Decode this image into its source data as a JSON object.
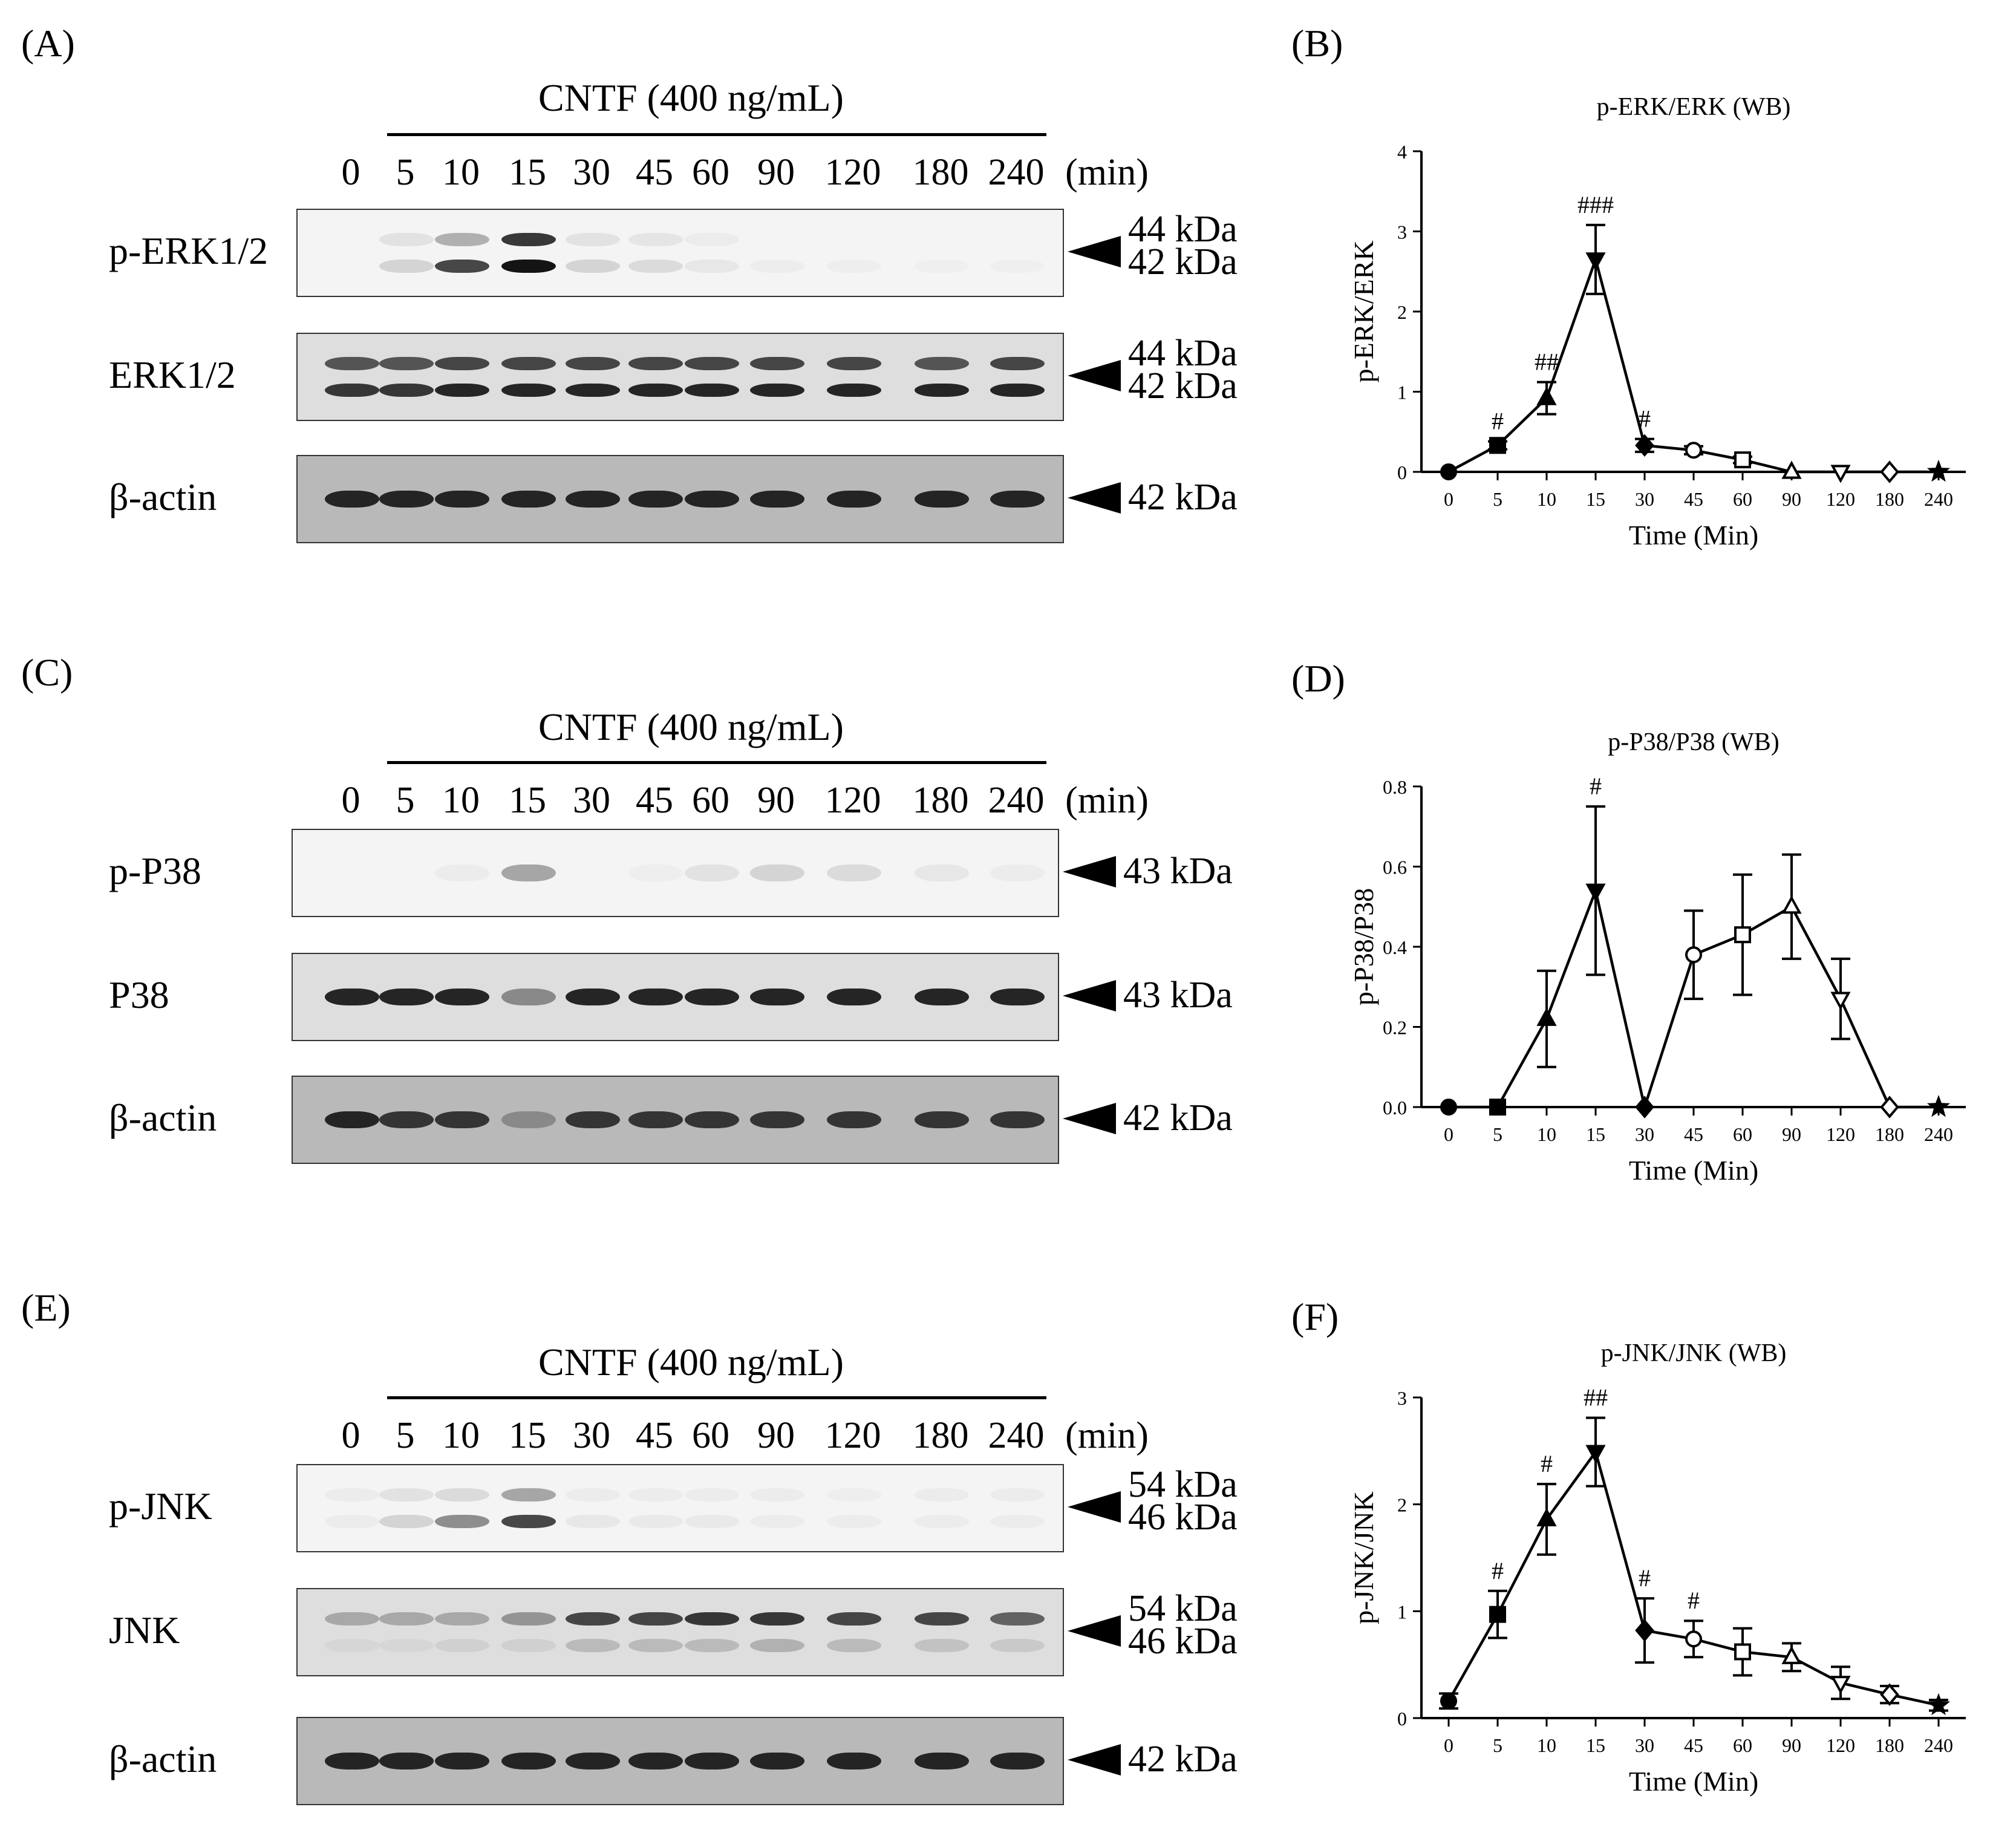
{
  "colors": {
    "ink": "#000000",
    "band": "#1a1a1a",
    "membrane_light": "#f4f4f4",
    "membrane_dark": "#b9b9b9"
  },
  "sections": [
    {
      "panel": "(A)",
      "treatment": "CNTF (400 ng/mL)",
      "lanes": [
        "0",
        "5",
        "10",
        "15",
        "30",
        "45",
        "60",
        "90",
        "120",
        "180",
        "240"
      ],
      "unit": "(min)",
      "blots": [
        {
          "name": "p-ERK1/2",
          "kda": [
            "44 kDa",
            "42 kDa"
          ]
        },
        {
          "name": "ERK1/2",
          "kda": [
            "44 kDa",
            "42 kDa"
          ]
        },
        {
          "name": "β-actin",
          "kda": [
            "42 kDa"
          ]
        }
      ]
    },
    {
      "panel": "(C)",
      "treatment": "CNTF (400 ng/mL)",
      "lanes": [
        "0",
        "5",
        "10",
        "15",
        "30",
        "45",
        "60",
        "90",
        "120",
        "180",
        "240"
      ],
      "unit": "(min)",
      "blots": [
        {
          "name": "p-P38",
          "kda": [
            "43 kDa"
          ]
        },
        {
          "name": "P38",
          "kda": [
            "43 kDa"
          ]
        },
        {
          "name": "β-actin",
          "kda": [
            "42 kDa"
          ]
        }
      ]
    },
    {
      "panel": "(E)",
      "treatment": "CNTF (400 ng/mL)",
      "lanes": [
        "0",
        "5",
        "10",
        "15",
        "30",
        "45",
        "60",
        "90",
        "120",
        "180",
        "240"
      ],
      "unit": "(min)",
      "blots": [
        {
          "name": "p-JNK",
          "kda": [
            "54 kDa",
            "46 kDa"
          ]
        },
        {
          "name": "JNK",
          "kda": [
            "54 kDa",
            "46 kDa"
          ]
        },
        {
          "name": "β-actin",
          "kda": [
            "42 kDa"
          ]
        }
      ]
    }
  ],
  "blot_intensity": [
    [
      [
        [
          0,
          0.15,
          0.45,
          0.9,
          0.15,
          0.12,
          0.05,
          0,
          0,
          0,
          0
        ],
        [
          0,
          0.25,
          0.85,
          1.0,
          0.25,
          0.2,
          0.1,
          0.04,
          0.03,
          0.02,
          0.02
        ]
      ],
      [
        [
          0.8,
          0.8,
          0.85,
          0.85,
          0.85,
          0.85,
          0.85,
          0.85,
          0.85,
          0.8,
          0.85
        ],
        [
          0.9,
          0.9,
          0.95,
          0.95,
          0.95,
          0.95,
          0.95,
          0.95,
          0.95,
          0.95,
          0.95
        ]
      ],
      [
        [
          0.95,
          0.95,
          0.95,
          0.95,
          0.95,
          0.95,
          0.95,
          0.95,
          0.95,
          0.95,
          0.95
        ]
      ]
    ],
    [
      [
        [
          0,
          0,
          0.05,
          0.5,
          0,
          0.03,
          0.15,
          0.25,
          0.2,
          0.1,
          0.05
        ]
      ],
      [
        [
          0.95,
          0.95,
          0.95,
          0.6,
          0.95,
          0.95,
          0.95,
          0.95,
          0.95,
          0.95,
          0.95
        ]
      ],
      [
        [
          0.95,
          0.9,
          0.9,
          0.55,
          0.9,
          0.9,
          0.9,
          0.9,
          0.9,
          0.9,
          0.9
        ]
      ]
    ],
    [
      [
        [
          0.05,
          0.15,
          0.2,
          0.5,
          0.05,
          0.05,
          0.05,
          0.05,
          0.03,
          0.05,
          0.05
        ],
        [
          0.05,
          0.25,
          0.6,
          0.85,
          0.1,
          0.08,
          0.08,
          0.05,
          0.05,
          0.05,
          0.05
        ]
      ],
      [
        [
          0.45,
          0.45,
          0.45,
          0.55,
          0.85,
          0.85,
          0.9,
          0.9,
          0.85,
          0.85,
          0.75
        ],
        [
          0.15,
          0.15,
          0.2,
          0.2,
          0.35,
          0.35,
          0.35,
          0.4,
          0.35,
          0.3,
          0.25
        ]
      ],
      [
        [
          0.95,
          0.95,
          0.95,
          0.95,
          0.95,
          0.95,
          0.95,
          0.95,
          0.95,
          0.95,
          0.95
        ]
      ]
    ]
  ],
  "chart_data": [
    {
      "panel": "(B)",
      "type": "line",
      "title": "p-ERK/ERK (WB)",
      "xlabel": "Time (Min)",
      "ylabel": "p-ERK/ERK",
      "categories": [
        "0",
        "5",
        "10",
        "15",
        "30",
        "45",
        "60",
        "90",
        "120",
        "180",
        "240"
      ],
      "values": [
        0,
        0.33,
        0.92,
        2.65,
        0.33,
        0.27,
        0.15,
        0,
        0,
        0,
        0
      ],
      "errors": [
        0,
        0.05,
        0.2,
        0.43,
        0.08,
        0.05,
        0.04,
        0,
        0,
        0,
        0
      ],
      "markers": [
        "circle",
        "square",
        "triangle",
        "triangle-down",
        "diamond",
        "circle-open",
        "square-open",
        "triangle-open",
        "triangle-down-open",
        "diamond-open",
        "star"
      ],
      "annotations": [
        "",
        "#",
        "##",
        "###",
        "#",
        "",
        "",
        "",
        "",
        "",
        ""
      ],
      "yticks": [
        "0",
        "1",
        "2",
        "3",
        "4"
      ],
      "ylim": [
        0,
        4
      ]
    },
    {
      "panel": "(D)",
      "type": "line",
      "title": "p-P38/P38 (WB)",
      "xlabel": "Time (Min)",
      "ylabel": "p-P38/P38",
      "categories": [
        "0",
        "5",
        "10",
        "15",
        "30",
        "45",
        "60",
        "90",
        "120",
        "180",
        "240"
      ],
      "values": [
        0,
        0,
        0.22,
        0.54,
        0,
        0.38,
        0.43,
        0.5,
        0.27,
        0,
        0
      ],
      "errors": [
        0,
        0,
        0.12,
        0.21,
        0,
        0.11,
        0.15,
        0.13,
        0.1,
        0,
        0
      ],
      "markers": [
        "circle",
        "square",
        "triangle",
        "triangle-down",
        "diamond",
        "circle-open",
        "square-open",
        "triangle-open",
        "triangle-down-open",
        "diamond-open",
        "star"
      ],
      "annotations": [
        "",
        "",
        "",
        "#",
        "",
        "",
        "",
        "",
        "",
        "",
        ""
      ],
      "yticks": [
        "0.0",
        "0.2",
        "0.4",
        "0.6",
        "0.8"
      ],
      "ylim": [
        0,
        0.8
      ]
    },
    {
      "panel": "(F)",
      "type": "line",
      "title": "p-JNK/JNK (WB)",
      "xlabel": "Time (Min)",
      "ylabel": "p-JNK/JNK",
      "categories": [
        "0",
        "5",
        "10",
        "15",
        "30",
        "45",
        "60",
        "90",
        "120",
        "180",
        "240"
      ],
      "values": [
        0.16,
        0.97,
        1.86,
        2.49,
        0.82,
        0.74,
        0.62,
        0.57,
        0.33,
        0.22,
        0.12
      ],
      "errors": [
        0.07,
        0.22,
        0.33,
        0.32,
        0.3,
        0.17,
        0.22,
        0.13,
        0.15,
        0.08,
        0.05
      ],
      "markers": [
        "circle",
        "square",
        "triangle",
        "triangle-down",
        "diamond",
        "circle-open",
        "square-open",
        "triangle-open",
        "triangle-down-open",
        "diamond-open",
        "star"
      ],
      "annotations": [
        "",
        "#",
        "#",
        "##",
        "#",
        "#",
        "",
        "",
        "",
        "",
        ""
      ],
      "yticks": [
        "0",
        "1",
        "2",
        "3"
      ],
      "ylim": [
        0,
        3
      ]
    }
  ]
}
